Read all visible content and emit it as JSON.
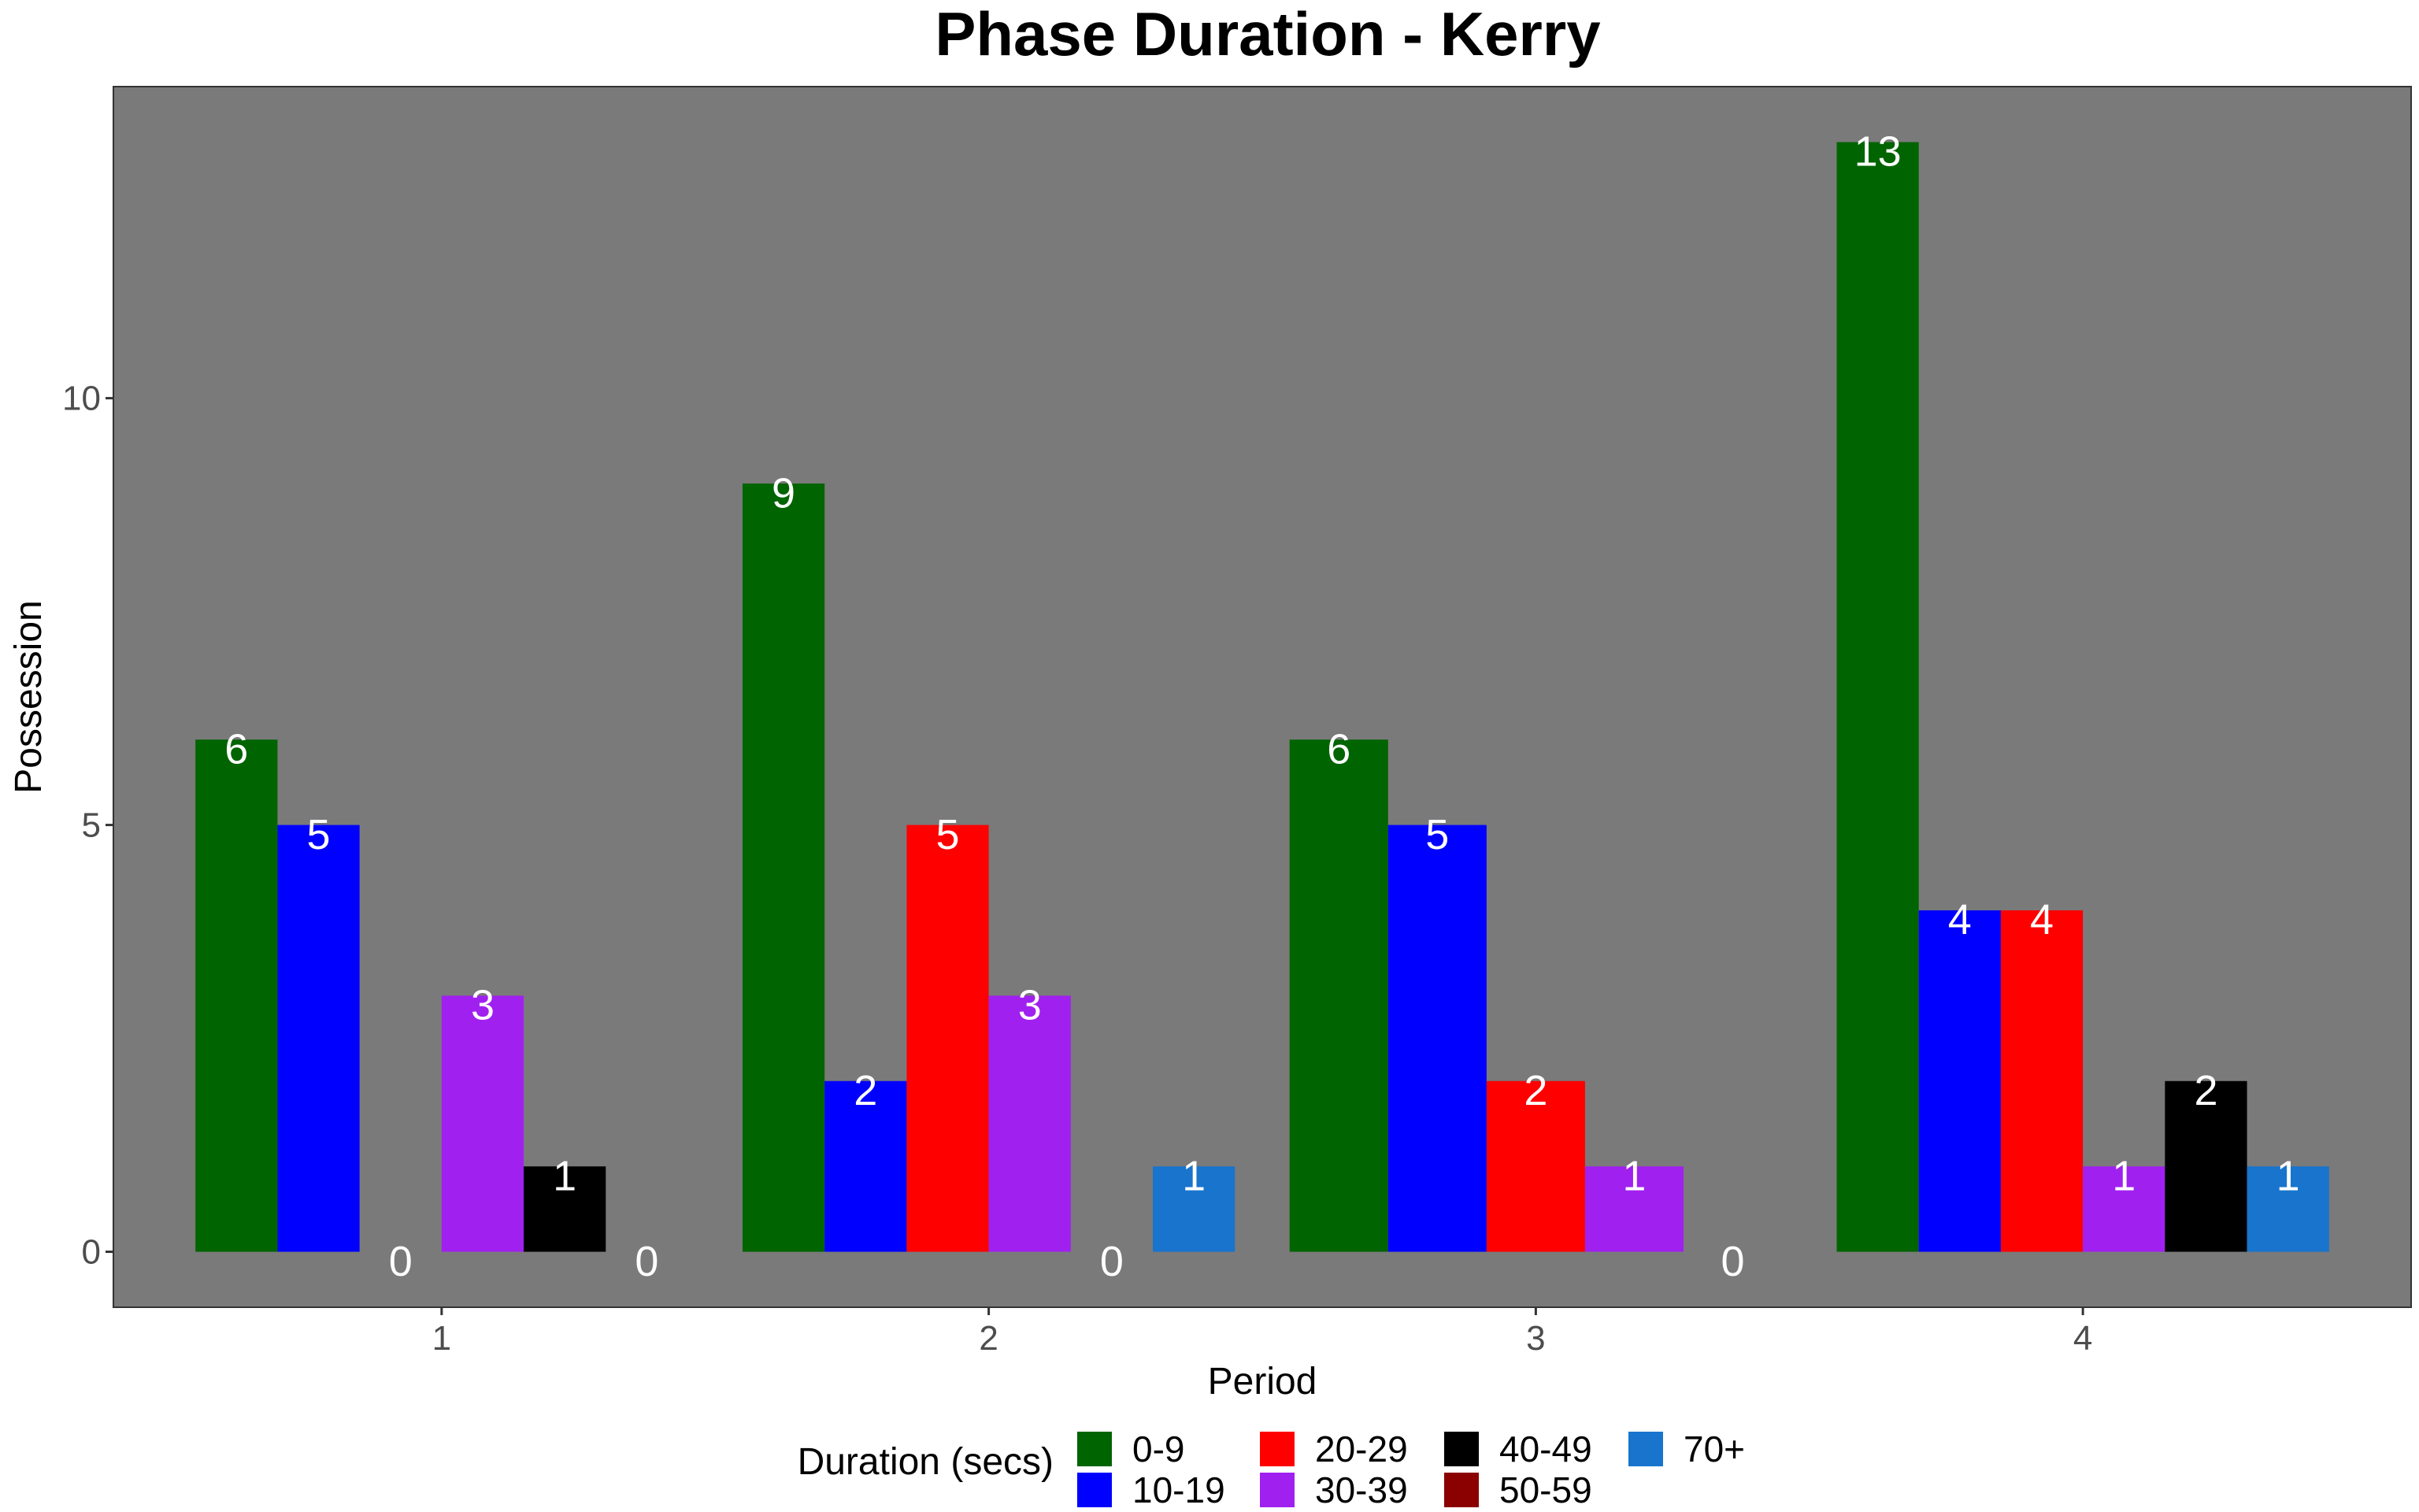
{
  "chart_data": {
    "type": "bar",
    "title": "Phase Duration - Kerry",
    "xlabel": "Period",
    "ylabel": "Possession",
    "categories": [
      "1",
      "2",
      "3",
      "4"
    ],
    "ylim": [
      -0.65,
      13.65
    ],
    "yticks": [
      0,
      5,
      10
    ],
    "grid": false,
    "background": "#7a7a7a",
    "legend": {
      "title": "Duration (secs)",
      "position": "bottom"
    },
    "series": [
      {
        "name": "0-9",
        "color": "#006400",
        "values": [
          6,
          9,
          6,
          13
        ]
      },
      {
        "name": "10-19",
        "color": "#0000ff",
        "values": [
          5,
          2,
          5,
          4
        ]
      },
      {
        "name": "20-29",
        "color": "#ff0000",
        "values": [
          0,
          5,
          2,
          4
        ]
      },
      {
        "name": "30-39",
        "color": "#a020f0",
        "values": [
          3,
          3,
          1,
          1
        ]
      },
      {
        "name": "40-49",
        "color": "#000000",
        "values": [
          1,
          0,
          0,
          2
        ]
      },
      {
        "name": "50-59",
        "color": "#8b0000",
        "values": [
          0,
          0,
          0,
          0
        ]
      },
      {
        "name": "70+",
        "color": "#1874cd",
        "values": [
          0,
          1,
          0,
          1
        ]
      }
    ],
    "bars": [
      {
        "category": "1",
        "group": "0-9",
        "value": 6,
        "slot": 0,
        "slots": 6
      },
      {
        "category": "1",
        "group": "10-19",
        "value": 5,
        "slot": 1,
        "slots": 6
      },
      {
        "category": "1",
        "group": "20-29",
        "value": 0,
        "slot": 2,
        "slots": 6
      },
      {
        "category": "1",
        "group": "30-39",
        "value": 3,
        "slot": 3,
        "slots": 6
      },
      {
        "category": "1",
        "group": "40-49",
        "value": 1,
        "slot": 4,
        "slots": 6
      },
      {
        "category": "1",
        "group": "50-59",
        "value": 0,
        "slot": 5,
        "slots": 6
      },
      {
        "category": "2",
        "group": "0-9",
        "value": 9,
        "slot": 0,
        "slots": 6
      },
      {
        "category": "2",
        "group": "10-19",
        "value": 2,
        "slot": 1,
        "slots": 6
      },
      {
        "category": "2",
        "group": "20-29",
        "value": 5,
        "slot": 2,
        "slots": 6
      },
      {
        "category": "2",
        "group": "30-39",
        "value": 3,
        "slot": 3,
        "slots": 6
      },
      {
        "category": "2",
        "group": "50-59",
        "value": 0,
        "slot": 4,
        "slots": 6
      },
      {
        "category": "2",
        "group": "70+",
        "value": 1,
        "slot": 5,
        "slots": 6
      },
      {
        "category": "3",
        "group": "0-9",
        "value": 6,
        "slot": 0,
        "slots": 5
      },
      {
        "category": "3",
        "group": "10-19",
        "value": 5,
        "slot": 1,
        "slots": 5
      },
      {
        "category": "3",
        "group": "20-29",
        "value": 2,
        "slot": 2,
        "slots": 5
      },
      {
        "category": "3",
        "group": "30-39",
        "value": 1,
        "slot": 3,
        "slots": 5
      },
      {
        "category": "3",
        "group": "50-59",
        "value": 0,
        "slot": 4,
        "slots": 5
      },
      {
        "category": "4",
        "group": "0-9",
        "value": 13,
        "slot": 0,
        "slots": 6
      },
      {
        "category": "4",
        "group": "10-19",
        "value": 4,
        "slot": 1,
        "slots": 6
      },
      {
        "category": "4",
        "group": "20-29",
        "value": 4,
        "slot": 2,
        "slots": 6
      },
      {
        "category": "4",
        "group": "30-39",
        "value": 1,
        "slot": 3,
        "slots": 6
      },
      {
        "category": "4",
        "group": "40-49",
        "value": 2,
        "slot": 4,
        "slots": 6
      },
      {
        "category": "4",
        "group": "70+",
        "value": 1,
        "slot": 5,
        "slots": 6
      }
    ]
  }
}
